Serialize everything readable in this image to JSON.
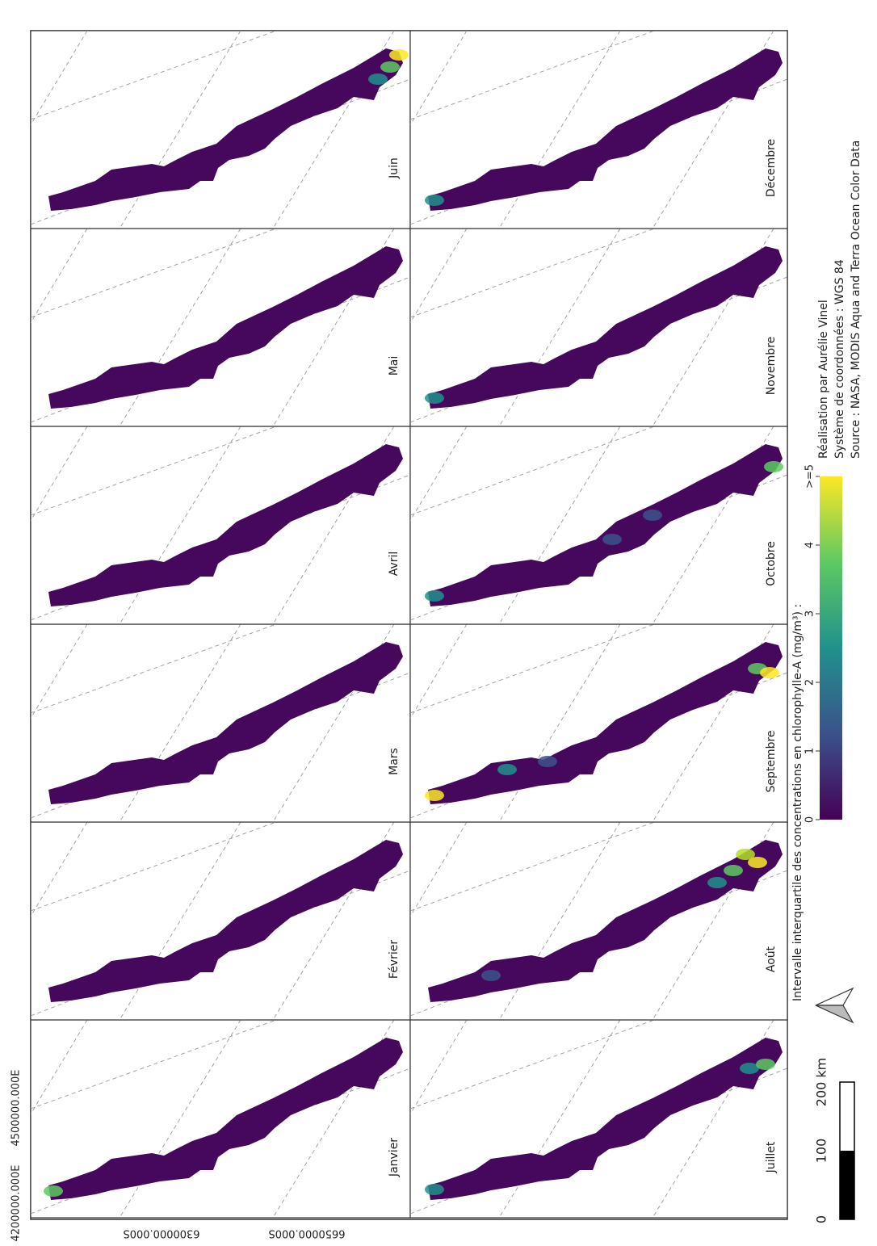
{
  "panels": [
    "Janvier",
    "Février",
    "Mars",
    "Avril",
    "Mai",
    "Juin",
    "Juillet",
    "Août",
    "Septembre",
    "Octobre",
    "Novembre",
    "Décembre"
  ],
  "coordinate_labels": {
    "east": [
      "4200000.000E",
      "4500000.000E"
    ],
    "south": [
      "6300000.000S",
      "6650000.000S"
    ]
  },
  "legend": {
    "title": "Intervalle interquartile des concentrations en chlorophylle-A  (mg/m³) :",
    "range": [
      0,
      5
    ],
    "ticks": [
      0,
      1,
      2,
      3,
      4,
      {
        "value": 5,
        "label": ">=5"
      }
    ]
  },
  "credits": [
    "Réalisation par Aurélie Vinel",
    "Système de coordonnées : WGS 84",
    "Source : NASA, MODIS Aqua and Terra Ocean Color Data"
  ],
  "scale_bar": [
    "0",
    "100",
    "200 km"
  ]
}
